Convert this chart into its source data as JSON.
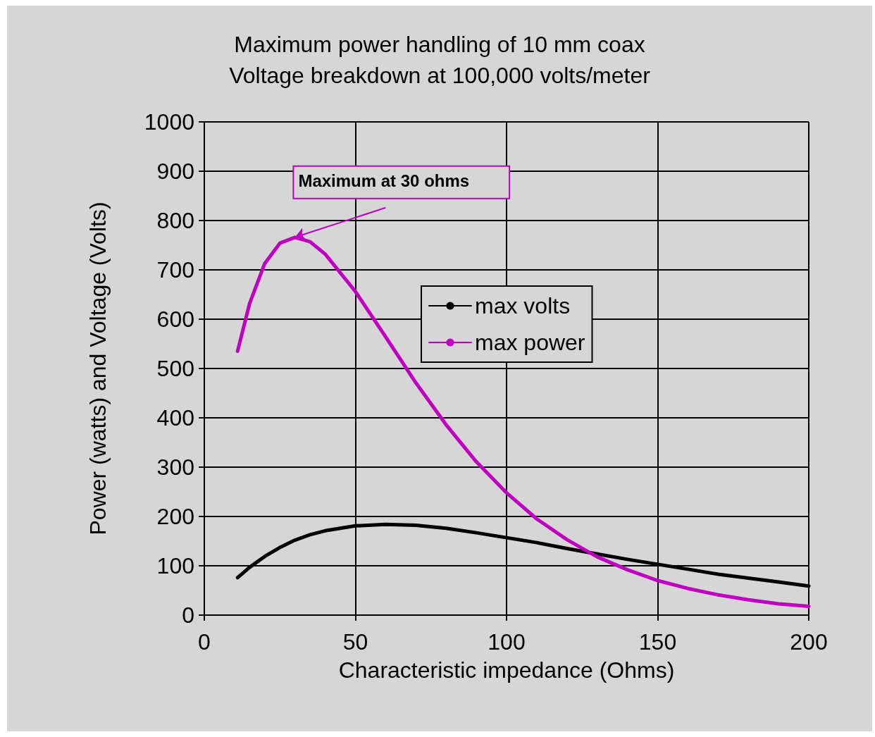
{
  "chart_data": {
    "type": "line",
    "title": "Maximum power handling of 10 mm coax",
    "subtitle": "Voltage breakdown at 100,000 volts/meter",
    "xlabel": "Characteristic impedance (Ohms)",
    "ylabel": "Power (watts) and Voltage (Volts)",
    "x": [
      11,
      15,
      20,
      25,
      30,
      35,
      40,
      50,
      60,
      70,
      80,
      90,
      100,
      110,
      120,
      130,
      140,
      150,
      160,
      170,
      180,
      190,
      200
    ],
    "series": [
      {
        "name": "max volts",
        "color": "#000000",
        "values": [
          76,
          97,
          119,
          137,
          152,
          163,
          171,
          181,
          184,
          182,
          176,
          167,
          157,
          147,
          135,
          124,
          113,
          103,
          93,
          83,
          75,
          67,
          59
        ]
      },
      {
        "name": "max power",
        "color": "#c000c0",
        "values": [
          535,
          632,
          713,
          754,
          766,
          757,
          732,
          656,
          564,
          471,
          386,
          311,
          248,
          195,
          153,
          118,
          92,
          70,
          54,
          41,
          31,
          23,
          18
        ]
      }
    ],
    "xlim": [
      0,
      200
    ],
    "xticks": [
      0,
      50,
      100,
      150,
      200
    ],
    "ylim": [
      0,
      1000
    ],
    "yticks": [
      0,
      100,
      200,
      300,
      400,
      500,
      600,
      700,
      800,
      900,
      1000
    ],
    "annotations": [
      {
        "text": "Maximum at 30 ohms",
        "x": 30,
        "y": 766
      }
    ],
    "grid": true,
    "legend": "top",
    "marker": "none",
    "line_style": "solid"
  }
}
